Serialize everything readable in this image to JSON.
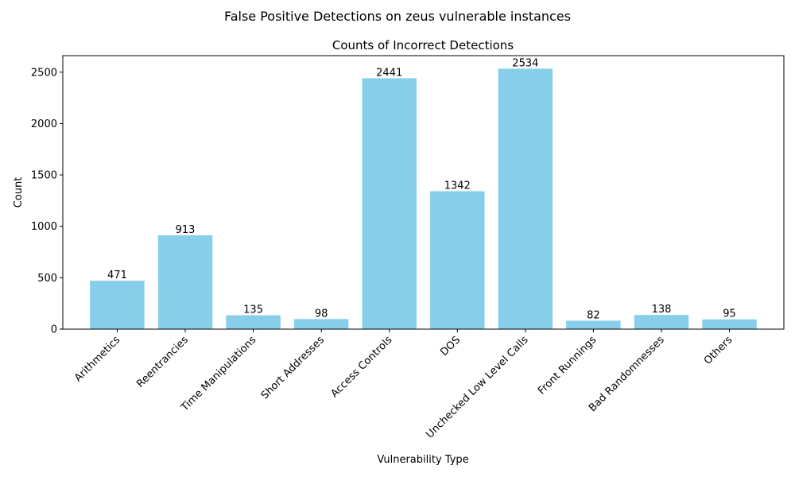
{
  "chart_data": {
    "type": "bar",
    "suptitle": "False Positive Detections on zeus vulnerable instances",
    "title": "Counts of Incorrect Detections",
    "xlabel": "Vulnerability Type",
    "ylabel": "Count",
    "categories": [
      "Arithmetics",
      "Reentrancies",
      "Time Manipulations",
      "Short Addresses",
      "Access Controls",
      "DOS",
      "Unchecked Low Level Calls",
      "Front Runnings",
      "Bad Randomnesses",
      "Others"
    ],
    "values": [
      471,
      913,
      135,
      98,
      2441,
      1342,
      2534,
      82,
      138,
      95
    ],
    "data_labels": [
      "471",
      "913",
      "135",
      "98",
      "2441",
      "1342",
      "2534",
      "82",
      "138",
      "95"
    ],
    "yticks": [
      0,
      500,
      1000,
      1500,
      2000,
      2500
    ],
    "ytick_labels": [
      "0",
      "500",
      "1000",
      "1500",
      "2000",
      "2500"
    ],
    "ylim": [
      0,
      2660.7
    ],
    "bar_color": "#87ceeb",
    "grid": false,
    "legend": false
  }
}
